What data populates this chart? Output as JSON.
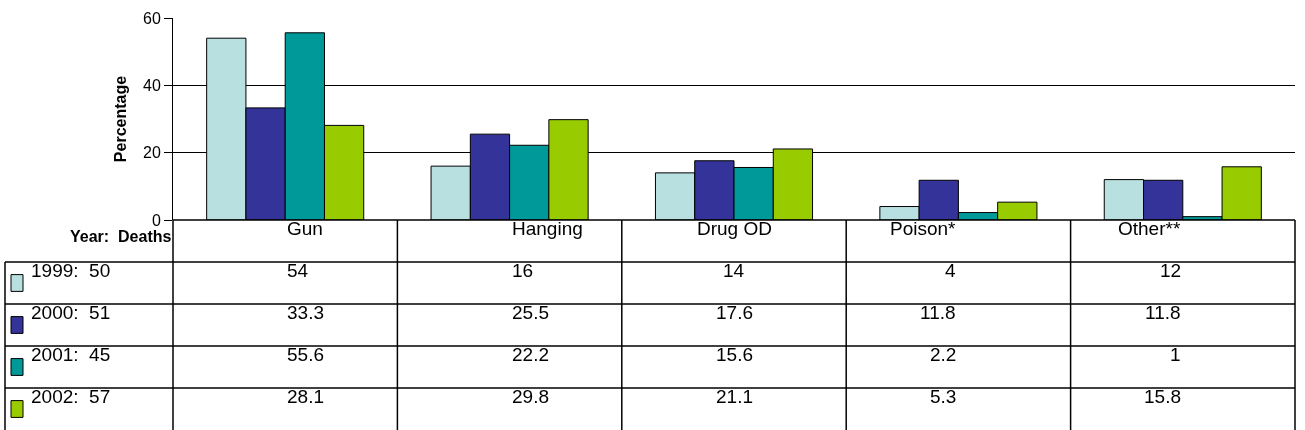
{
  "chart_data": {
    "type": "bar",
    "ylabel": "Percentage",
    "legend_title": "Year:  Deaths",
    "categories": [
      "Gun",
      "Hanging",
      "Drug OD",
      "Poison*",
      "Other**"
    ],
    "series": [
      {
        "name": "1999:  50",
        "color": "#b8e0e0",
        "values": [
          54,
          16,
          14,
          4,
          12
        ]
      },
      {
        "name": "2000:  51",
        "color": "#333399",
        "values": [
          33.3,
          25.5,
          17.6,
          11.8,
          11.8
        ]
      },
      {
        "name": "2001:  45",
        "color": "#009999",
        "values": [
          55.6,
          22.2,
          15.6,
          2.2,
          1
        ]
      },
      {
        "name": "2002:  57",
        "color": "#99cc00",
        "values": [
          28.1,
          29.8,
          21.1,
          5.3,
          15.8
        ]
      }
    ],
    "ylim": [
      0,
      60
    ],
    "yticks": [
      0,
      20,
      40,
      60
    ],
    "grid": "y",
    "legend": "bottom left",
    "data_labels": true
  }
}
